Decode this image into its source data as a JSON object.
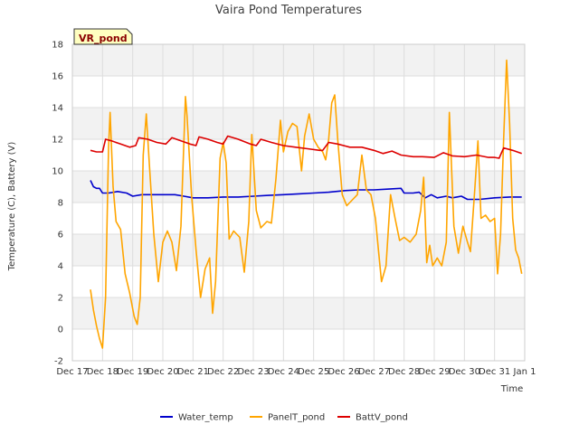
{
  "chart_data": {
    "type": "line",
    "title": "Vaira Pond Temperatures",
    "xlabel": "Time",
    "ylabel": "Temperature (C), Battery (V)",
    "badge": "VR_pond",
    "xlim": [
      17,
      32
    ],
    "ylim": [
      -2,
      18
    ],
    "yticks": [
      -2,
      0,
      2,
      4,
      6,
      8,
      10,
      12,
      14,
      16,
      18
    ],
    "xticks": [
      {
        "x": 17,
        "label": "Dec 17"
      },
      {
        "x": 18,
        "label": "Dec 18"
      },
      {
        "x": 19,
        "label": "Dec 19"
      },
      {
        "x": 20,
        "label": "Dec 20"
      },
      {
        "x": 21,
        "label": "Dec 21"
      },
      {
        "x": 22,
        "label": "Dec 22"
      },
      {
        "x": 23,
        "label": "Dec 23"
      },
      {
        "x": 24,
        "label": "Dec 24"
      },
      {
        "x": 25,
        "label": "Dec 25"
      },
      {
        "x": 26,
        "label": "Dec 26"
      },
      {
        "x": 27,
        "label": "Dec 27"
      },
      {
        "x": 28,
        "label": "Dec 28"
      },
      {
        "x": 29,
        "label": "Dec 29"
      },
      {
        "x": 30,
        "label": "Dec 30"
      },
      {
        "x": 31,
        "label": "Dec 31"
      },
      {
        "x": 32,
        "label": "Jan 1"
      }
    ],
    "grid": true,
    "legend_position": "bottom",
    "series": [
      {
        "name": "Water_temp",
        "color": "#0000cc",
        "points": [
          [
            17.6,
            9.4
          ],
          [
            17.7,
            9.0
          ],
          [
            17.8,
            8.9
          ],
          [
            17.9,
            8.9
          ],
          [
            18.0,
            8.6
          ],
          [
            18.2,
            8.6
          ],
          [
            18.5,
            8.7
          ],
          [
            18.8,
            8.6
          ],
          [
            19.0,
            8.4
          ],
          [
            19.3,
            8.5
          ],
          [
            19.6,
            8.5
          ],
          [
            20.0,
            8.5
          ],
          [
            20.4,
            8.5
          ],
          [
            20.7,
            8.4
          ],
          [
            21.0,
            8.3
          ],
          [
            21.5,
            8.3
          ],
          [
            22.0,
            8.35
          ],
          [
            22.5,
            8.35
          ],
          [
            23.0,
            8.4
          ],
          [
            23.5,
            8.45
          ],
          [
            24.0,
            8.5
          ],
          [
            24.5,
            8.55
          ],
          [
            25.0,
            8.6
          ],
          [
            25.5,
            8.65
          ],
          [
            26.0,
            8.75
          ],
          [
            26.5,
            8.8
          ],
          [
            27.0,
            8.8
          ],
          [
            27.5,
            8.85
          ],
          [
            27.9,
            8.9
          ],
          [
            28.0,
            8.6
          ],
          [
            28.3,
            8.6
          ],
          [
            28.5,
            8.65
          ],
          [
            28.7,
            8.3
          ],
          [
            28.9,
            8.5
          ],
          [
            29.1,
            8.3
          ],
          [
            29.4,
            8.4
          ],
          [
            29.6,
            8.3
          ],
          [
            29.9,
            8.4
          ],
          [
            30.1,
            8.2
          ],
          [
            30.5,
            8.2
          ],
          [
            31.0,
            8.3
          ],
          [
            31.5,
            8.35
          ],
          [
            31.9,
            8.35
          ]
        ]
      },
      {
        "name": "PanelT_pond",
        "color": "#ffa500",
        "points": [
          [
            17.6,
            2.5
          ],
          [
            17.7,
            1.2
          ],
          [
            17.8,
            0.2
          ],
          [
            17.9,
            -0.6
          ],
          [
            18.0,
            -1.2
          ],
          [
            18.1,
            2.0
          ],
          [
            18.2,
            11.5
          ],
          [
            18.25,
            13.7
          ],
          [
            18.35,
            9.0
          ],
          [
            18.45,
            6.8
          ],
          [
            18.6,
            6.3
          ],
          [
            18.75,
            3.5
          ],
          [
            18.9,
            2.3
          ],
          [
            19.05,
            0.8
          ],
          [
            19.15,
            0.3
          ],
          [
            19.25,
            2.0
          ],
          [
            19.35,
            11.0
          ],
          [
            19.45,
            13.6
          ],
          [
            19.55,
            10.5
          ],
          [
            19.7,
            6.0
          ],
          [
            19.85,
            3.0
          ],
          [
            20.0,
            5.5
          ],
          [
            20.15,
            6.2
          ],
          [
            20.3,
            5.5
          ],
          [
            20.45,
            3.7
          ],
          [
            20.6,
            6.5
          ],
          [
            20.75,
            14.7
          ],
          [
            20.8,
            13.5
          ],
          [
            20.95,
            8.5
          ],
          [
            21.1,
            5.0
          ],
          [
            21.25,
            2.0
          ],
          [
            21.4,
            3.8
          ],
          [
            21.55,
            4.5
          ],
          [
            21.65,
            1.0
          ],
          [
            21.75,
            3.0
          ],
          [
            21.9,
            10.8
          ],
          [
            22.0,
            11.8
          ],
          [
            22.1,
            10.5
          ],
          [
            22.2,
            5.7
          ],
          [
            22.35,
            6.2
          ],
          [
            22.55,
            5.8
          ],
          [
            22.7,
            3.6
          ],
          [
            22.85,
            6.8
          ],
          [
            22.95,
            12.3
          ],
          [
            23.1,
            7.5
          ],
          [
            23.25,
            6.4
          ],
          [
            23.45,
            6.8
          ],
          [
            23.6,
            6.7
          ],
          [
            23.75,
            9.5
          ],
          [
            23.9,
            13.2
          ],
          [
            24.0,
            11.2
          ],
          [
            24.15,
            12.5
          ],
          [
            24.3,
            13.0
          ],
          [
            24.45,
            12.8
          ],
          [
            24.6,
            10.0
          ],
          [
            24.7,
            12.2
          ],
          [
            24.85,
            13.6
          ],
          [
            25.0,
            12.0
          ],
          [
            25.15,
            11.5
          ],
          [
            25.3,
            11.2
          ],
          [
            25.4,
            10.7
          ],
          [
            25.5,
            12.0
          ],
          [
            25.6,
            14.3
          ],
          [
            25.7,
            14.8
          ],
          [
            25.8,
            12.0
          ],
          [
            25.95,
            8.5
          ],
          [
            26.1,
            7.8
          ],
          [
            26.3,
            8.2
          ],
          [
            26.45,
            8.5
          ],
          [
            26.6,
            11.0
          ],
          [
            26.75,
            8.8
          ],
          [
            26.9,
            8.5
          ],
          [
            27.05,
            7.0
          ],
          [
            27.15,
            5.0
          ],
          [
            27.25,
            3.0
          ],
          [
            27.4,
            4.0
          ],
          [
            27.55,
            8.5
          ],
          [
            27.7,
            7.0
          ],
          [
            27.85,
            5.6
          ],
          [
            28.0,
            5.8
          ],
          [
            28.2,
            5.5
          ],
          [
            28.4,
            6.0
          ],
          [
            28.55,
            7.5
          ],
          [
            28.65,
            9.6
          ],
          [
            28.75,
            4.2
          ],
          [
            28.85,
            5.3
          ],
          [
            28.95,
            4.0
          ],
          [
            29.1,
            4.5
          ],
          [
            29.25,
            4.0
          ],
          [
            29.4,
            5.5
          ],
          [
            29.5,
            13.7
          ],
          [
            29.65,
            6.5
          ],
          [
            29.8,
            4.8
          ],
          [
            29.95,
            6.5
          ],
          [
            30.1,
            5.5
          ],
          [
            30.2,
            4.9
          ],
          [
            30.35,
            9.0
          ],
          [
            30.45,
            11.9
          ],
          [
            30.55,
            7.0
          ],
          [
            30.7,
            7.2
          ],
          [
            30.85,
            6.8
          ],
          [
            31.0,
            7.0
          ],
          [
            31.1,
            3.5
          ],
          [
            31.2,
            6.0
          ],
          [
            31.3,
            12.0
          ],
          [
            31.4,
            17.0
          ],
          [
            31.5,
            13.0
          ],
          [
            31.6,
            7.0
          ],
          [
            31.7,
            5.0
          ],
          [
            31.8,
            4.5
          ],
          [
            31.9,
            3.5
          ]
        ]
      },
      {
        "name": "BattV_pond",
        "color": "#dd0000",
        "points": [
          [
            17.6,
            11.3
          ],
          [
            17.8,
            11.2
          ],
          [
            18.0,
            11.2
          ],
          [
            18.1,
            12.0
          ],
          [
            18.3,
            11.9
          ],
          [
            18.6,
            11.7
          ],
          [
            18.9,
            11.5
          ],
          [
            19.1,
            11.6
          ],
          [
            19.2,
            12.1
          ],
          [
            19.5,
            12.0
          ],
          [
            19.8,
            11.8
          ],
          [
            20.1,
            11.7
          ],
          [
            20.3,
            12.1
          ],
          [
            20.6,
            11.9
          ],
          [
            20.9,
            11.7
          ],
          [
            21.1,
            11.6
          ],
          [
            21.2,
            12.15
          ],
          [
            21.5,
            12.0
          ],
          [
            21.8,
            11.8
          ],
          [
            22.0,
            11.7
          ],
          [
            22.15,
            12.2
          ],
          [
            22.5,
            12.0
          ],
          [
            22.9,
            11.7
          ],
          [
            23.1,
            11.6
          ],
          [
            23.25,
            12.0
          ],
          [
            23.6,
            11.8
          ],
          [
            24.0,
            11.6
          ],
          [
            24.4,
            11.5
          ],
          [
            24.8,
            11.4
          ],
          [
            25.2,
            11.3
          ],
          [
            25.3,
            11.3
          ],
          [
            25.5,
            11.8
          ],
          [
            25.8,
            11.7
          ],
          [
            26.2,
            11.5
          ],
          [
            26.6,
            11.5
          ],
          [
            27.0,
            11.3
          ],
          [
            27.3,
            11.1
          ],
          [
            27.6,
            11.25
          ],
          [
            27.9,
            11.0
          ],
          [
            28.3,
            10.9
          ],
          [
            28.6,
            10.9
          ],
          [
            29.0,
            10.85
          ],
          [
            29.3,
            11.15
          ],
          [
            29.6,
            10.95
          ],
          [
            30.0,
            10.9
          ],
          [
            30.4,
            11.0
          ],
          [
            30.8,
            10.85
          ],
          [
            31.0,
            10.85
          ],
          [
            31.15,
            10.8
          ],
          [
            31.3,
            11.45
          ],
          [
            31.6,
            11.3
          ],
          [
            31.9,
            11.1
          ]
        ]
      }
    ]
  }
}
